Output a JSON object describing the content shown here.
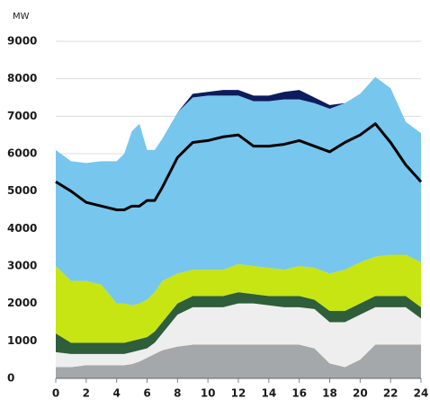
{
  "chart_data": {
    "type": "area",
    "stacked": true,
    "y_axis_label": "MW",
    "x": [
      0,
      1,
      2,
      3,
      4,
      4.5,
      5,
      5.5,
      6,
      6.5,
      7,
      8,
      9,
      10,
      11,
      12,
      13,
      14,
      15,
      16,
      17,
      18,
      19,
      20,
      21,
      22,
      23,
      24
    ],
    "xlim": [
      0,
      24
    ],
    "xticks": [
      0,
      2,
      4,
      6,
      8,
      10,
      12,
      14,
      16,
      18,
      20,
      22,
      24
    ],
    "ylim": [
      0,
      9000
    ],
    "yticks": [
      0,
      1000,
      2000,
      3000,
      4000,
      5000,
      6000,
      7000,
      8000,
      9000
    ],
    "grid": true,
    "series": [
      {
        "color": "#a5a8aa",
        "values": [
          300,
          300,
          350,
          350,
          350,
          350,
          380,
          450,
          550,
          650,
          750,
          850,
          900,
          900,
          900,
          900,
          900,
          900,
          900,
          900,
          800,
          400,
          300,
          500,
          900,
          900,
          900,
          900
        ]
      },
      {
        "color": "#eeeeee",
        "values": [
          400,
          350,
          300,
          300,
          300,
          300,
          320,
          300,
          250,
          300,
          450,
          850,
          1000,
          1000,
          1000,
          1100,
          1100,
          1050,
          1000,
          1000,
          1050,
          1100,
          1200,
          1200,
          1000,
          1000,
          1000,
          700
        ]
      },
      {
        "color": "#2e5e3a",
        "values": [
          500,
          300,
          300,
          300,
          300,
          300,
          300,
          300,
          300,
          300,
          300,
          300,
          300,
          300,
          300,
          300,
          250,
          250,
          300,
          300,
          250,
          300,
          300,
          300,
          300,
          300,
          300,
          300
        ]
      },
      {
        "color": "#c6e512",
        "values": [
          1800,
          1650,
          1650,
          1550,
          1050,
          1050,
          950,
          950,
          1000,
          1050,
          1100,
          800,
          700,
          700,
          700,
          750,
          750,
          750,
          700,
          800,
          850,
          1000,
          1100,
          1100,
          1050,
          1100,
          1100,
          1200
        ]
      },
      {
        "color": "#77c6ee",
        "values": [
          3100,
          3200,
          3150,
          3300,
          3800,
          4000,
          4650,
          4800,
          4000,
          3800,
          3800,
          4300,
          4600,
          4650,
          4650,
          4500,
          4400,
          4450,
          4550,
          4450,
          4400,
          4400,
          4450,
          4500,
          4800,
          4450,
          3550,
          3450
        ]
      },
      {
        "color": "#0c1c5c",
        "values": [
          0,
          0,
          0,
          0,
          0,
          0,
          0,
          0,
          0,
          0,
          0,
          0,
          100,
          100,
          150,
          150,
          150,
          150,
          200,
          250,
          150,
          100,
          0,
          0,
          0,
          0,
          0,
          0
        ]
      },
      {
        "type": "line",
        "color": "#000000",
        "values": [
          5250,
          5000,
          4700,
          4600,
          4500,
          4500,
          4600,
          4600,
          4750,
          4750,
          5100,
          5900,
          6300,
          6350,
          6450,
          6500,
          6200,
          6200,
          6250,
          6350,
          6200,
          6050,
          6300,
          6500,
          6800,
          6300,
          5700,
          5250
        ]
      }
    ]
  }
}
